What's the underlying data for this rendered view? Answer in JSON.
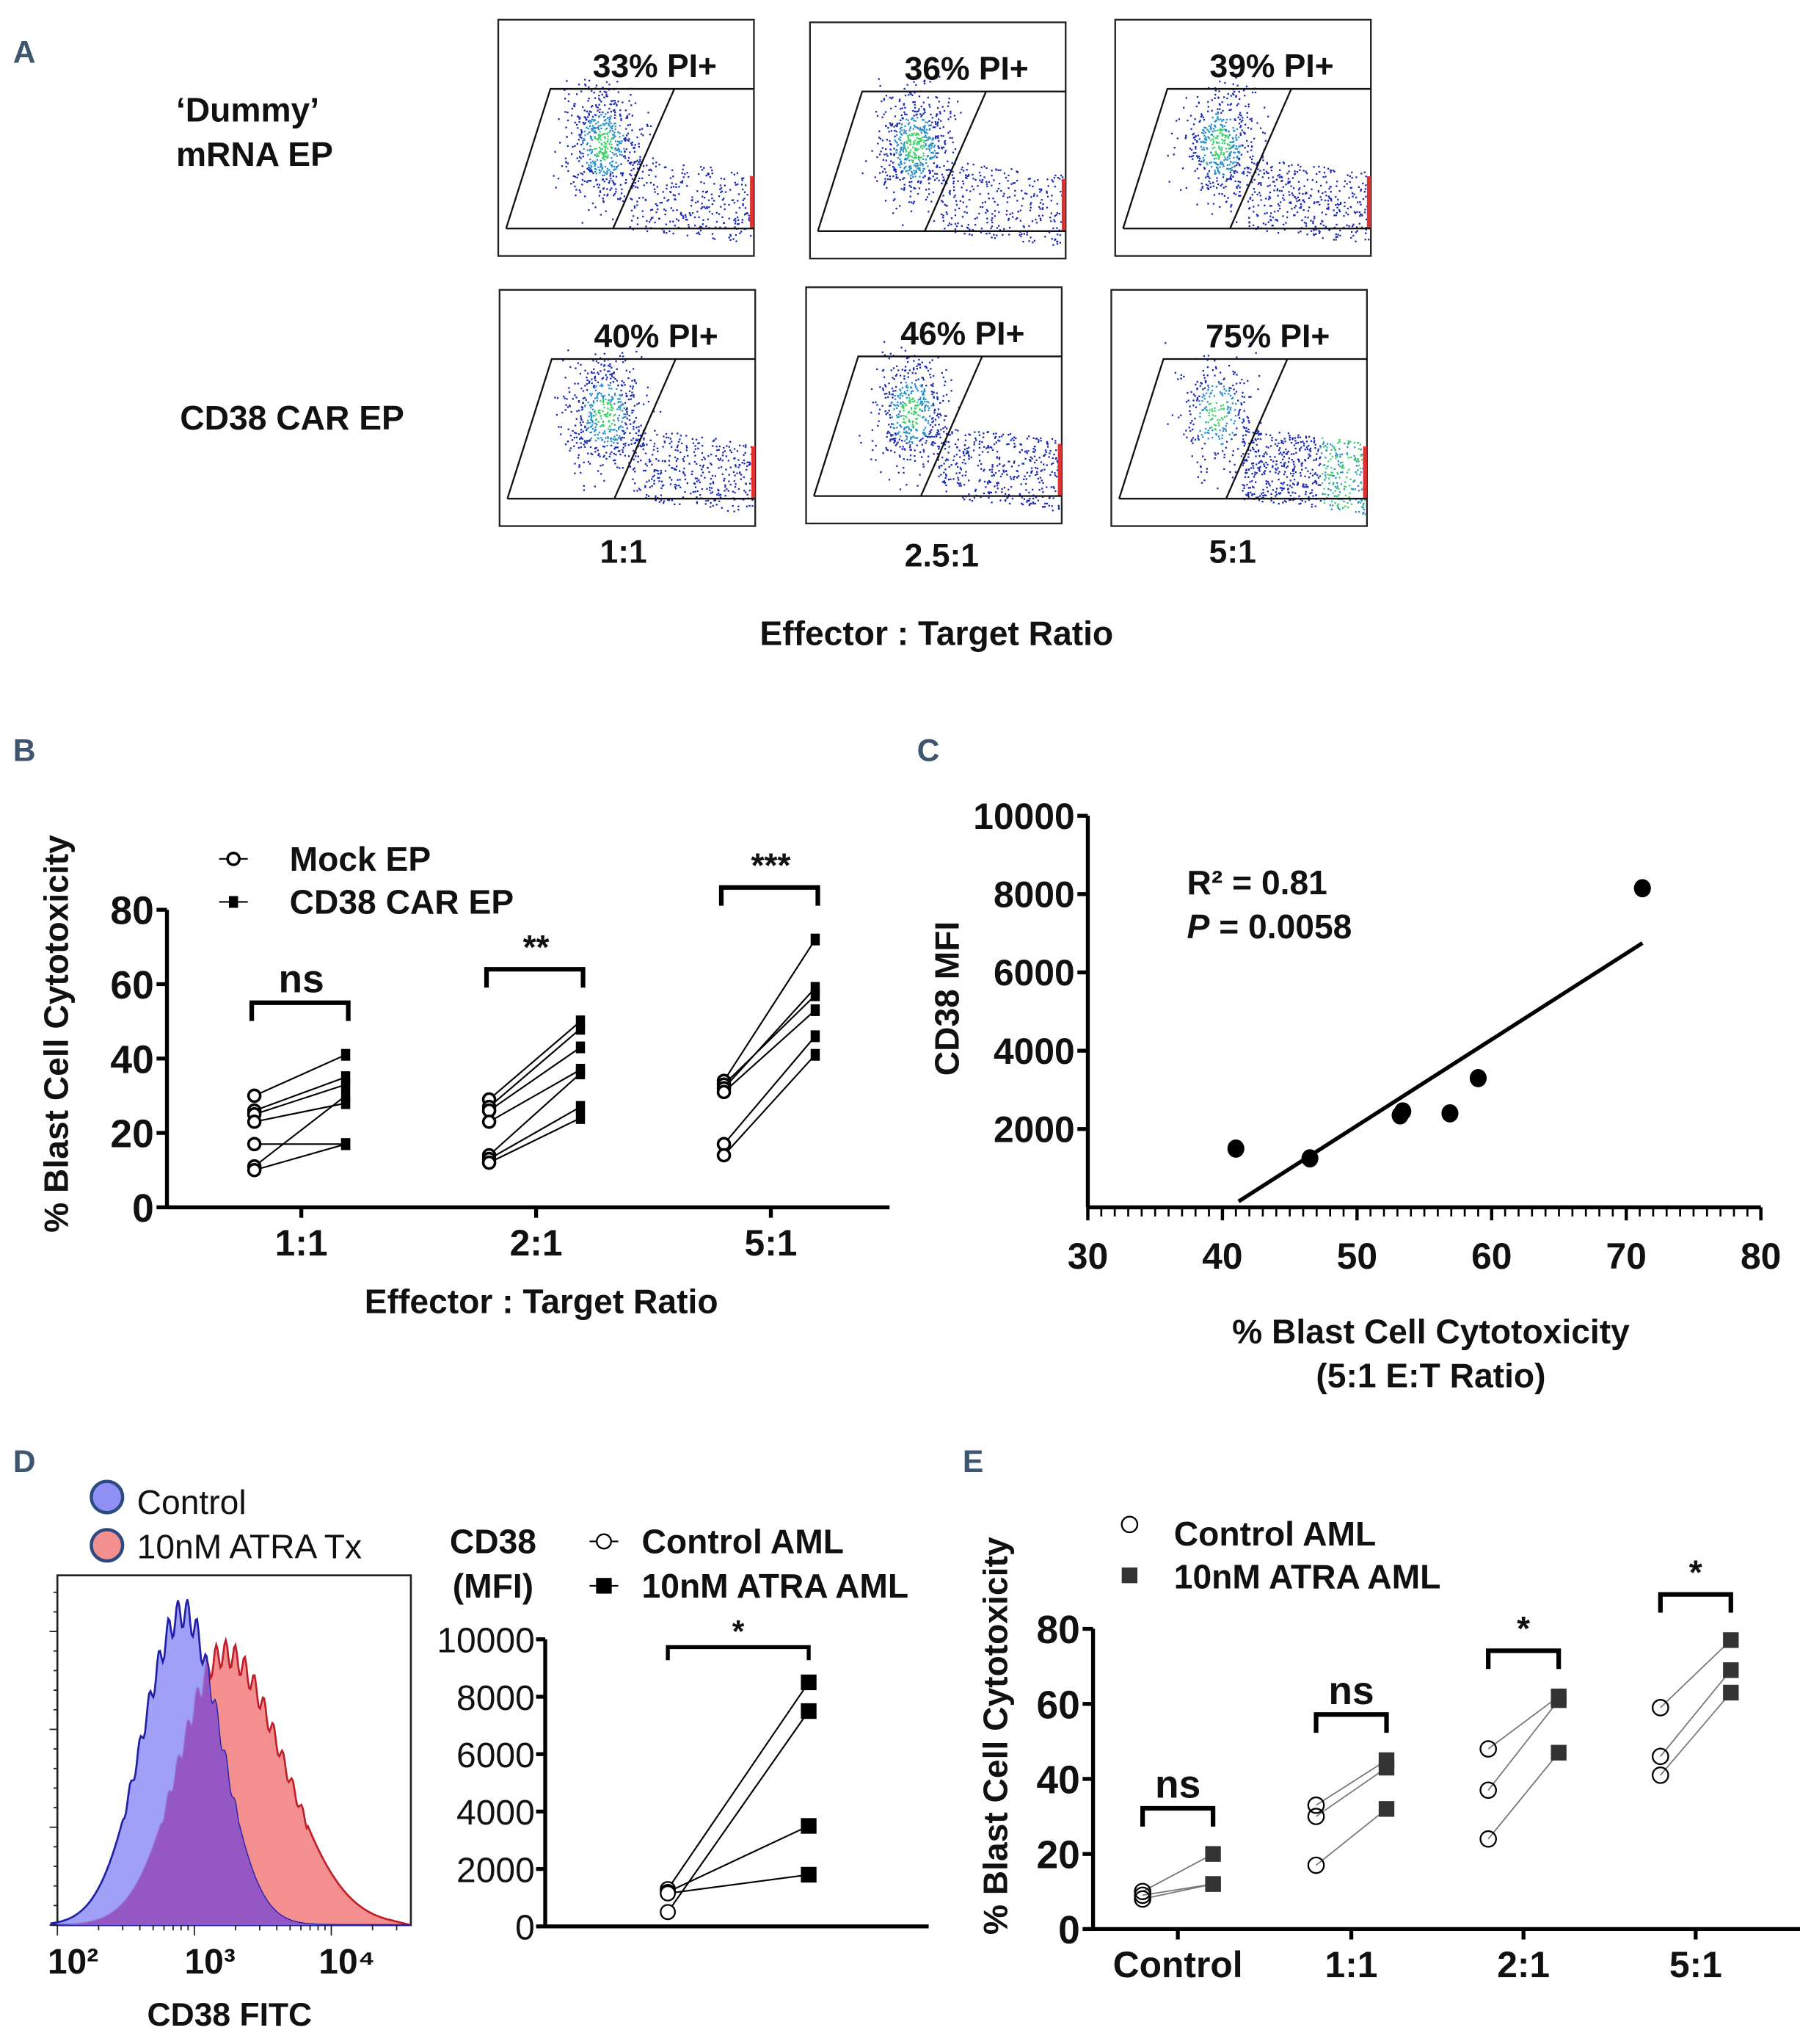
{
  "panel_labels": {
    "a": "A",
    "b": "B",
    "c": "C",
    "d": "D",
    "e": "E"
  },
  "chart_data": [
    {
      "panel": "A",
      "type": "scatter",
      "row_labels": [
        "‘Dummy’",
        "mRNA EP",
        "CD38 CAR EP"
      ],
      "column_labels": [
        "1:1",
        "2.5:1",
        "5:1"
      ],
      "xlabel": "Effector : Target Ratio",
      "plots": [
        {
          "row": "Dummy mRNA EP",
          "ratio": "1:1",
          "label": "33% PI+",
          "pi_percent": 33
        },
        {
          "row": "Dummy mRNA EP",
          "ratio": "2.5:1",
          "label": "36% PI+",
          "pi_percent": 36
        },
        {
          "row": "Dummy mRNA EP",
          "ratio": "5:1",
          "label": "39% PI+",
          "pi_percent": 39
        },
        {
          "row": "CD38 CAR EP",
          "ratio": "1:1",
          "label": "40% PI+",
          "pi_percent": 40
        },
        {
          "row": "CD38 CAR EP",
          "ratio": "2.5:1",
          "label": "46% PI+",
          "pi_percent": 46
        },
        {
          "row": "CD38 CAR EP",
          "ratio": "5:1",
          "label": "75% PI+",
          "pi_percent": 75
        }
      ]
    },
    {
      "panel": "B",
      "type": "scatter",
      "ylabel": "% Blast Cell Cytotoxicity",
      "xlabel": "Effector : Target Ratio",
      "ylim": [
        0,
        80
      ],
      "yticks": [
        "0",
        "20",
        "40",
        "60",
        "80"
      ],
      "categories": [
        "1:1",
        "2:1",
        "5:1"
      ],
      "legend": [
        "Mock EP",
        "CD38 CAR EP"
      ],
      "significance": [
        "ns",
        "**",
        "***"
      ],
      "pairs": [
        [
          [
            30,
            41
          ],
          [
            26,
            35
          ],
          [
            25,
            33
          ],
          [
            23,
            28
          ],
          [
            17,
            17
          ],
          [
            11,
            30
          ],
          [
            10,
            17
          ]
        ],
        [
          [
            29,
            50
          ],
          [
            27,
            48
          ],
          [
            26,
            43
          ],
          [
            23,
            37
          ],
          [
            14,
            36
          ],
          [
            13,
            27
          ],
          [
            12,
            24
          ]
        ],
        [
          [
            34,
            72
          ],
          [
            33,
            57
          ],
          [
            32,
            59
          ],
          [
            31,
            53
          ],
          [
            17,
            46
          ],
          [
            14,
            41
          ]
        ]
      ]
    },
    {
      "panel": "C",
      "type": "scatter",
      "ylabel": "CD38 MFI",
      "xlabel": [
        "% Blast Cell Cytotoxicity",
        "(5:1 E:T Ratio)"
      ],
      "xlim": [
        30,
        80
      ],
      "ylim": [
        0,
        10000
      ],
      "xticks": [
        "30",
        "40",
        "50",
        "60",
        "70",
        "80"
      ],
      "yticks": [
        "2000",
        "4000",
        "6000",
        "8000",
        "10000"
      ],
      "r2_label": "R² = 0.81",
      "p_label_italic": "P",
      "p_label_rest": " = 0.0058",
      "points": [
        [
          41,
          1500
        ],
        [
          46.5,
          1250
        ],
        [
          53.2,
          2350
        ],
        [
          53.4,
          2450
        ],
        [
          56.9,
          2400
        ],
        [
          59,
          3300
        ],
        [
          71.2,
          8150
        ]
      ],
      "fit_line": [
        [
          41.2,
          150
        ],
        [
          71.2,
          6750
        ]
      ]
    },
    {
      "panel": "D-left",
      "type": "area",
      "xlabel": "CD38 FITC",
      "xscale": "log",
      "xticks": [
        "10²",
        "10³",
        "10⁴"
      ],
      "legend": [
        "Control",
        "10nM ATRA Tx"
      ],
      "colors": {
        "control": "#8f8ff5",
        "control_line": "#1f1fa8",
        "atra": "#f48f8f",
        "atra_line": "#c01f2a",
        "overlap": "#9457c4"
      }
    },
    {
      "panel": "D-right",
      "type": "scatter",
      "ylabel": [
        "CD38",
        "(MFI)"
      ],
      "ylim": [
        0,
        10000
      ],
      "yticks": [
        "0",
        "2000",
        "4000",
        "6000",
        "8000",
        "10000"
      ],
      "legend": [
        "Control AML",
        "10nM ATRA AML"
      ],
      "significance": "*",
      "pairs": [
        [
          1300,
          8500
        ],
        [
          500,
          7500
        ],
        [
          1200,
          3500
        ],
        [
          1150,
          1800
        ]
      ]
    },
    {
      "panel": "E",
      "type": "scatter",
      "ylabel": "% Blast Cell Cytotoxicity",
      "ylim": [
        0,
        80
      ],
      "yticks": [
        "0",
        "20",
        "40",
        "60",
        "80"
      ],
      "categories": [
        "Control",
        "1:1",
        "2:1",
        "5:1"
      ],
      "legend": [
        "Control AML",
        "10nM ATRA AML"
      ],
      "significance": [
        "ns",
        "ns",
        "*",
        "*"
      ],
      "pairs": [
        [
          [
            10,
            20
          ],
          [
            9,
            12
          ],
          [
            8,
            12
          ]
        ],
        [
          [
            33,
            45
          ],
          [
            30,
            43
          ],
          [
            17,
            32
          ]
        ],
        [
          [
            48,
            62
          ],
          [
            37,
            61
          ],
          [
            24,
            47
          ]
        ],
        [
          [
            59,
            77
          ],
          [
            46,
            69
          ],
          [
            41,
            63
          ]
        ]
      ]
    }
  ]
}
